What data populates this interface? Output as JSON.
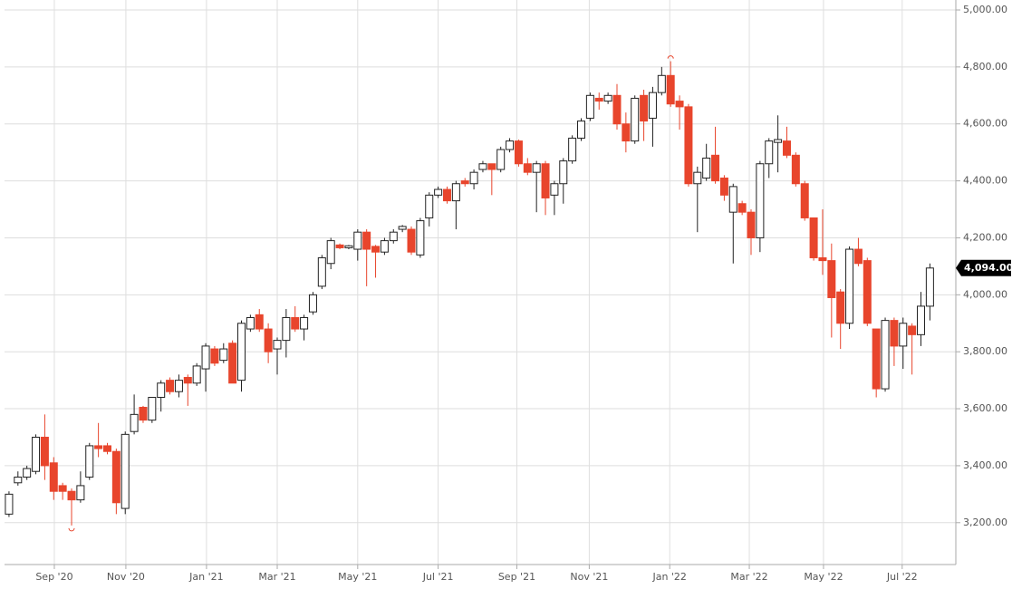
{
  "chart_data": {
    "type": "candlestick",
    "open": [
      3230,
      3340,
      3360,
      3380,
      3500,
      3410,
      3330,
      3310,
      3280,
      3360,
      3470,
      3470,
      3450,
      3250,
      3520,
      3605,
      3560,
      3640,
      3700,
      3660,
      3710,
      3690,
      3740,
      3810,
      3770,
      3830,
      3700,
      3880,
      3930,
      3880,
      3810,
      3840,
      3920,
      3880,
      3940,
      4030,
      4110,
      4175,
      4165,
      4160,
      4220,
      4170,
      4150,
      4190,
      4230,
      4230,
      4140,
      4270,
      4350,
      4370,
      4330,
      4400,
      4390,
      4440,
      4460,
      4440,
      4510,
      4540,
      4460,
      4430,
      4460,
      4350,
      4390,
      4470,
      4550,
      4620,
      4690,
      4680,
      4700,
      4600,
      4540,
      4700,
      4620,
      4710,
      4770,
      4680,
      4660,
      4390,
      4410,
      4490,
      4410,
      4290,
      4320,
      4290,
      4200,
      4460,
      4535,
      4540,
      4490,
      4390,
      4270,
      4130,
      4120,
      4010,
      3900,
      4160,
      4120,
      3880,
      3670,
      3910,
      3820,
      3890,
      3860,
      3960
    ],
    "high": [
      3310,
      3380,
      3400,
      3510,
      3580,
      3430,
      3340,
      3320,
      3380,
      3480,
      3550,
      3480,
      3460,
      3520,
      3650,
      3610,
      3640,
      3700,
      3710,
      3720,
      3720,
      3760,
      3830,
      3820,
      3830,
      3840,
      3910,
      3930,
      3950,
      3900,
      3850,
      3950,
      3960,
      3930,
      4010,
      4140,
      4200,
      4180,
      4175,
      4230,
      4230,
      4175,
      4200,
      4230,
      4245,
      4240,
      4270,
      4360,
      4380,
      4380,
      4400,
      4410,
      4440,
      4470,
      4460,
      4520,
      4550,
      4545,
      4480,
      4470,
      4470,
      4400,
      4480,
      4560,
      4620,
      4710,
      4710,
      4710,
      4740,
      4640,
      4700,
      4720,
      4730,
      4800,
      4820,
      4700,
      4670,
      4450,
      4530,
      4590,
      4420,
      4390,
      4330,
      4300,
      4470,
      4550,
      4630,
      4590,
      4500,
      4400,
      4270,
      4300,
      4180,
      4020,
      4170,
      4200,
      4130,
      3880,
      3920,
      3920,
      3920,
      3900,
      4010,
      4110
    ],
    "low": [
      3220,
      3330,
      3350,
      3370,
      3350,
      3280,
      3280,
      3190,
      3270,
      3350,
      3430,
      3440,
      3230,
      3230,
      3510,
      3550,
      3550,
      3590,
      3650,
      3640,
      3610,
      3680,
      3660,
      3750,
      3760,
      3690,
      3660,
      3870,
      3870,
      3760,
      3720,
      3780,
      3870,
      3840,
      3930,
      4020,
      4090,
      4160,
      4160,
      4120,
      4030,
      4060,
      4140,
      4180,
      4220,
      4140,
      4130,
      4240,
      4340,
      4320,
      4230,
      4380,
      4370,
      4430,
      4350,
      4430,
      4500,
      4450,
      4420,
      4290,
      4280,
      4280,
      4320,
      4460,
      4540,
      4610,
      4650,
      4670,
      4580,
      4500,
      4530,
      4540,
      4520,
      4700,
      4660,
      4580,
      4380,
      4220,
      4400,
      4390,
      4330,
      4110,
      4280,
      4140,
      4150,
      4410,
      4430,
      4480,
      4380,
      4260,
      4120,
      4070,
      3850,
      3810,
      3880,
      4100,
      3890,
      3640,
      3660,
      3750,
      3740,
      3720,
      3820,
      3910
    ],
    "close": [
      3300,
      3360,
      3390,
      3500,
      3400,
      3310,
      3310,
      3280,
      3330,
      3470,
      3460,
      3450,
      3270,
      3510,
      3580,
      3560,
      3640,
      3690,
      3660,
      3700,
      3690,
      3750,
      3820,
      3760,
      3810,
      3690,
      3900,
      3920,
      3880,
      3800,
      3840,
      3920,
      3880,
      3920,
      4000,
      4130,
      4190,
      4165,
      4172,
      4220,
      4160,
      4150,
      4190,
      4220,
      4240,
      4150,
      4260,
      4350,
      4370,
      4330,
      4390,
      4390,
      4430,
      4460,
      4440,
      4510,
      4540,
      4460,
      4430,
      4460,
      4340,
      4390,
      4470,
      4550,
      4610,
      4700,
      4680,
      4700,
      4600,
      4540,
      4690,
      4610,
      4710,
      4770,
      4670,
      4660,
      4390,
      4430,
      4480,
      4400,
      4350,
      4380,
      4290,
      4200,
      4460,
      4540,
      4545,
      4490,
      4390,
      4270,
      4130,
      4120,
      3990,
      3900,
      4160,
      4110,
      3900,
      3670,
      3910,
      3820,
      3900,
      3860,
      3960,
      4094
    ],
    "last_close_label": "4,094.00",
    "up_color": "#ffffff",
    "down_color": "#e8452c",
    "xlim": [
      -0.5,
      105.9
    ],
    "xticks": [
      {
        "value": 5.07,
        "label": "Sep '20"
      },
      {
        "value": 13.07,
        "label": "Nov '20"
      },
      {
        "value": 22.09,
        "label": "Jan '21"
      },
      {
        "value": 30.0,
        "label": "Mar '21"
      },
      {
        "value": 39.0,
        "label": "May '21"
      },
      {
        "value": 48.0,
        "label": "Jul '21"
      },
      {
        "value": 56.8,
        "label": "Sep '21"
      },
      {
        "value": 64.9,
        "label": "Nov '21"
      },
      {
        "value": 73.9,
        "label": "Jan '22"
      },
      {
        "value": 82.8,
        "label": "Mar '22"
      },
      {
        "value": 91.1,
        "label": "May '22"
      },
      {
        "value": 99.9,
        "label": "Jul '22"
      }
    ],
    "ylim": [
      3053,
      5035
    ],
    "yticks": [
      {
        "value": 3200,
        "label": "3,200.00"
      },
      {
        "value": 3400,
        "label": "3,400.00"
      },
      {
        "value": 3600,
        "label": "3,600.00"
      },
      {
        "value": 3800,
        "label": "3,800.00"
      },
      {
        "value": 4000,
        "label": "4,000.00"
      },
      {
        "value": 4200,
        "label": "4,200.00"
      },
      {
        "value": 4400,
        "label": "4,400.00"
      },
      {
        "value": 4600,
        "label": "4,600.00"
      },
      {
        "value": 4800,
        "label": "4,800.00"
      },
      {
        "value": 5000,
        "label": "5,000.00"
      }
    ],
    "grid": true
  }
}
